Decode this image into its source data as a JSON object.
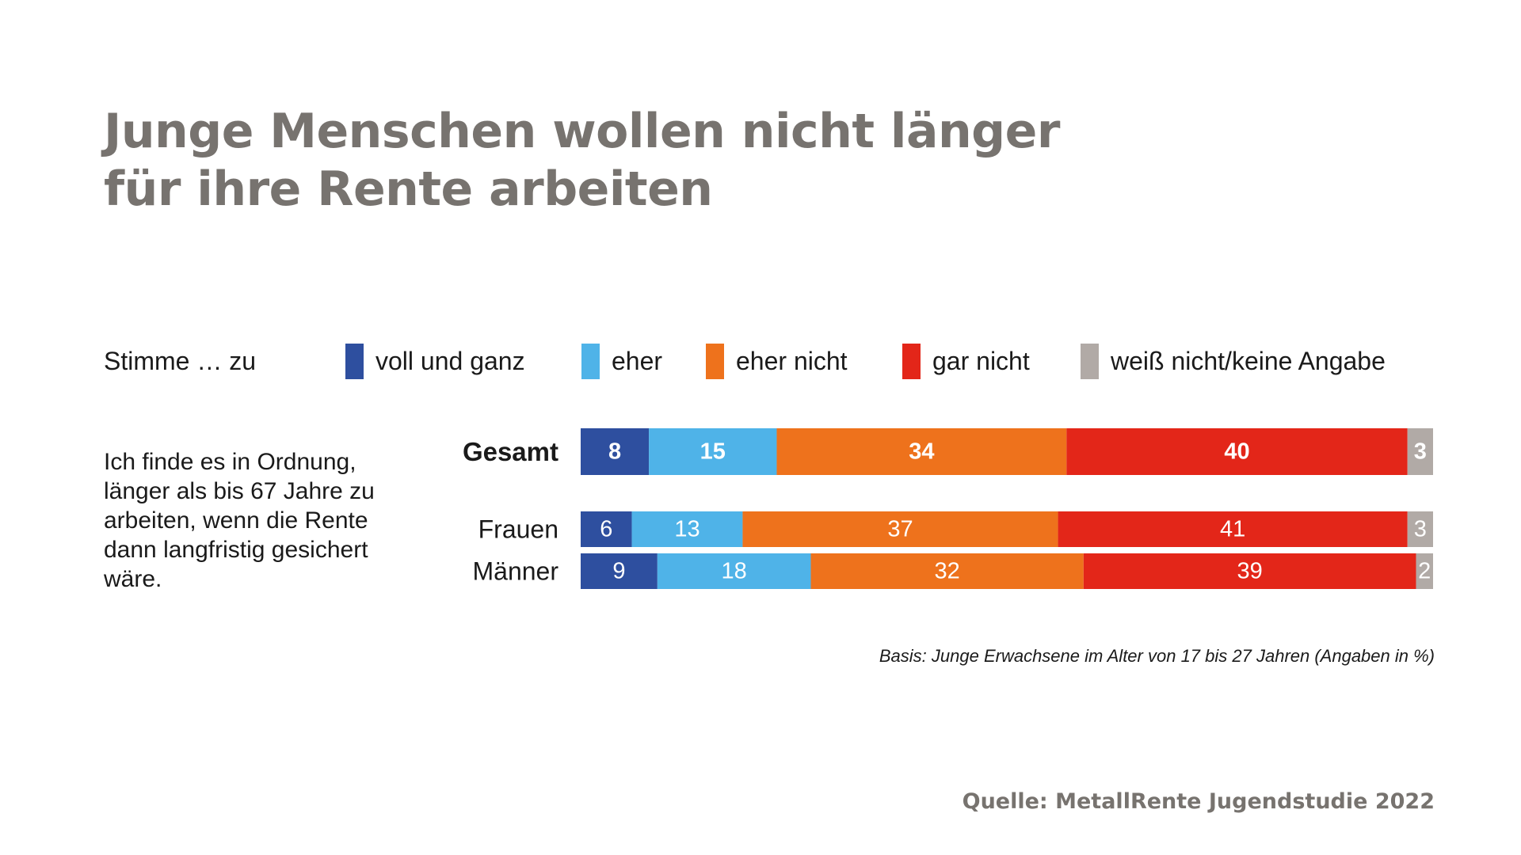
{
  "title": {
    "line1": "Junge Menschen wollen nicht länger",
    "line2": "für ihre Rente arbeiten"
  },
  "legend": {
    "prefix": "Stimme … zu",
    "items": [
      {
        "label": "voll und ganz",
        "color": "#2e4f9f"
      },
      {
        "label": "eher",
        "color": "#4fb3e8"
      },
      {
        "label": "eher nicht",
        "color": "#ee721c"
      },
      {
        "label": "gar nicht",
        "color": "#e32619"
      },
      {
        "label": "weiß nicht/keine Angabe",
        "color": "#b1aaa6"
      }
    ]
  },
  "question": "Ich finde es in Ordnung, länger als bis 67 Jahre zu arbeiten, wenn die Rente dann langfristig gesichert wäre.",
  "chart_data": {
    "type": "bar",
    "orientation": "horizontal",
    "stacked": true,
    "categories": [
      "Gesamt",
      "Frauen",
      "Männer"
    ],
    "series": [
      {
        "name": "voll und ganz",
        "color": "#2e4f9f",
        "values": [
          8,
          6,
          9
        ]
      },
      {
        "name": "eher",
        "color": "#4fb3e8",
        "values": [
          15,
          13,
          18
        ]
      },
      {
        "name": "eher nicht",
        "color": "#ee721c",
        "values": [
          34,
          37,
          32
        ]
      },
      {
        "name": "gar nicht",
        "color": "#e32619",
        "values": [
          40,
          41,
          39
        ]
      },
      {
        "name": "weiß nicht/keine Angabe",
        "color": "#b1aaa6",
        "values": [
          3,
          3,
          2
        ]
      }
    ],
    "emphasized_category": "Gesamt",
    "title": "",
    "xlabel": "",
    "ylabel": "",
    "grid": false,
    "legend_position": "top"
  },
  "basis": "Basis: Junge Erwachsene im Alter von 17 bis 27 Jahren (Angaben in %)",
  "source": "Quelle: MetallRente Jugendstudie 2022"
}
